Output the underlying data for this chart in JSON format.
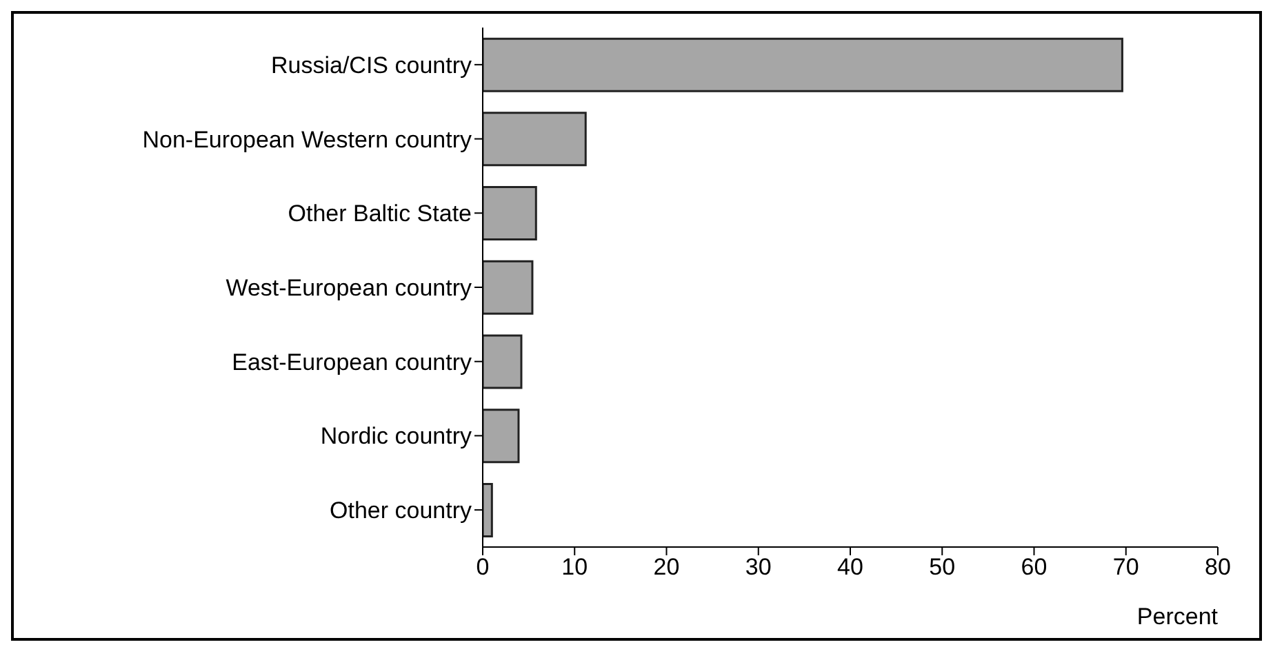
{
  "chart_data": {
    "type": "bar",
    "orientation": "horizontal",
    "categories": [
      "Russia/CIS country",
      "Non-European Western country",
      "Other Baltic State",
      "West-European country",
      "East-European country",
      "Nordic country",
      "Other country"
    ],
    "values": [
      69.6,
      11.2,
      5.8,
      5.4,
      4.2,
      3.9,
      1.0
    ],
    "color": "#a6a6a6",
    "xlim": [
      0,
      80
    ],
    "xticks": [
      0,
      10,
      20,
      30,
      40,
      50,
      60,
      70,
      80
    ],
    "xlabel": "Percent"
  }
}
